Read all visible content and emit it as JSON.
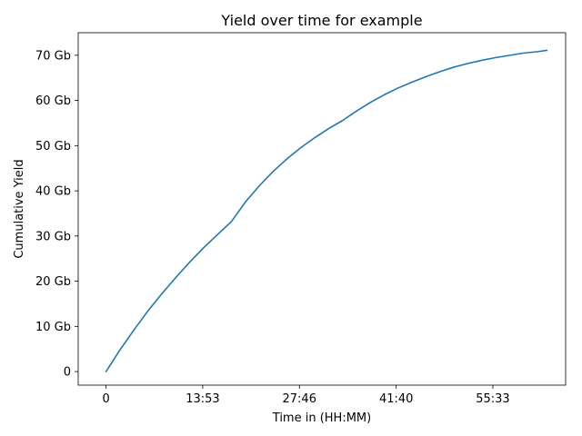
{
  "chart_data": {
    "type": "line",
    "title": "Yield over time for example",
    "xlabel": "Time in (HH:MM)",
    "ylabel": "Cumulative Yield",
    "x_unit": "minutes",
    "xlim": [
      -4,
      66
    ],
    "ylim": [
      -3,
      75
    ],
    "x_ticks": [
      {
        "value": 0,
        "label": "0"
      },
      {
        "value": 13.883,
        "label": "13:53"
      },
      {
        "value": 27.767,
        "label": "27:46"
      },
      {
        "value": 41.667,
        "label": "41:40"
      },
      {
        "value": 55.55,
        "label": "55:33"
      }
    ],
    "y_ticks": [
      {
        "value": 0,
        "label": "0"
      },
      {
        "value": 10,
        "label": "10 Gb"
      },
      {
        "value": 20,
        "label": "20 Gb"
      },
      {
        "value": 30,
        "label": "30 Gb"
      },
      {
        "value": 40,
        "label": "40 Gb"
      },
      {
        "value": 50,
        "label": "50 Gb"
      },
      {
        "value": 60,
        "label": "60 Gb"
      },
      {
        "value": 70,
        "label": "70 Gb"
      }
    ],
    "grid": false,
    "legend": "none",
    "series": [
      {
        "color": "#1f77b4",
        "x": [
          0,
          2,
          4,
          6,
          8,
          10,
          12,
          14,
          16,
          18,
          20,
          22,
          24,
          26,
          28,
          30,
          32,
          34,
          36,
          38,
          40,
          42,
          44,
          46,
          48,
          50,
          52,
          54,
          56,
          58,
          60,
          62,
          63.3
        ],
        "y": [
          0,
          4.8,
          9.2,
          13.4,
          17.2,
          20.8,
          24.2,
          27.4,
          30.3,
          33.2,
          37.5,
          41.1,
          44.3,
          47.1,
          49.6,
          51.8,
          53.8,
          55.6,
          57.7,
          59.6,
          61.3,
          62.8,
          64.1,
          65.3,
          66.4,
          67.4,
          68.2,
          68.9,
          69.5,
          70.0,
          70.5,
          70.8,
          71.1
        ]
      }
    ]
  }
}
